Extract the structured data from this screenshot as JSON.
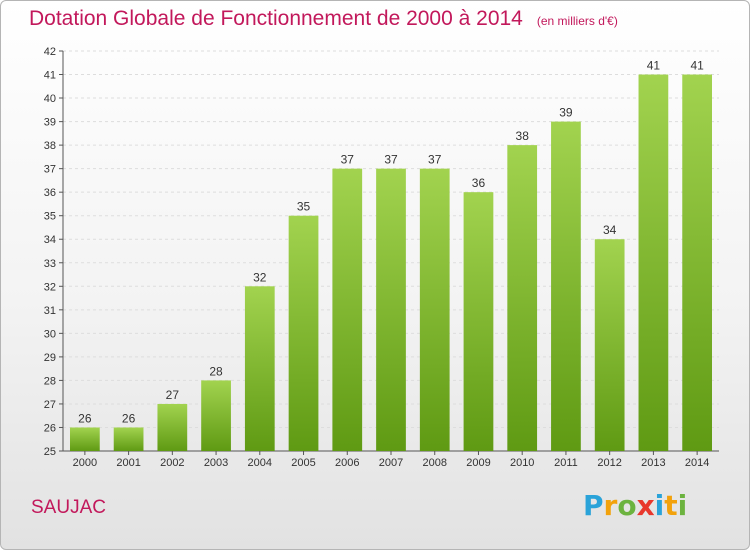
{
  "header": {
    "title": "Dotation Globale de Fonctionnement de 2000 à 2014",
    "subtitle": "(en milliers d'€)"
  },
  "footer": {
    "commune": "SAUJAC",
    "logo_text": "Proxiti"
  },
  "colors": {
    "title": "#c2185b",
    "bar_top": "#a2d34f",
    "bar_bottom": "#5f9a13",
    "grid": "#dddddd",
    "axis": "#555555"
  },
  "chart_data": {
    "type": "bar",
    "title": "Dotation Globale de Fonctionnement de 2000 à 2014",
    "subtitle": "(en milliers d'€)",
    "xlabel": "",
    "ylabel": "",
    "categories": [
      "2000",
      "2001",
      "2002",
      "2003",
      "2004",
      "2005",
      "2006",
      "2007",
      "2008",
      "2009",
      "2010",
      "2011",
      "2012",
      "2013",
      "2014"
    ],
    "values": [
      26,
      26,
      27,
      28,
      32,
      35,
      37,
      37,
      37,
      36,
      38,
      39,
      34,
      41,
      41
    ],
    "ylim": [
      25,
      42
    ],
    "yticks": [
      25,
      26,
      27,
      28,
      29,
      30,
      31,
      32,
      33,
      34,
      35,
      36,
      37,
      38,
      39,
      40,
      41,
      42
    ],
    "grid": true,
    "data_labels": true
  }
}
